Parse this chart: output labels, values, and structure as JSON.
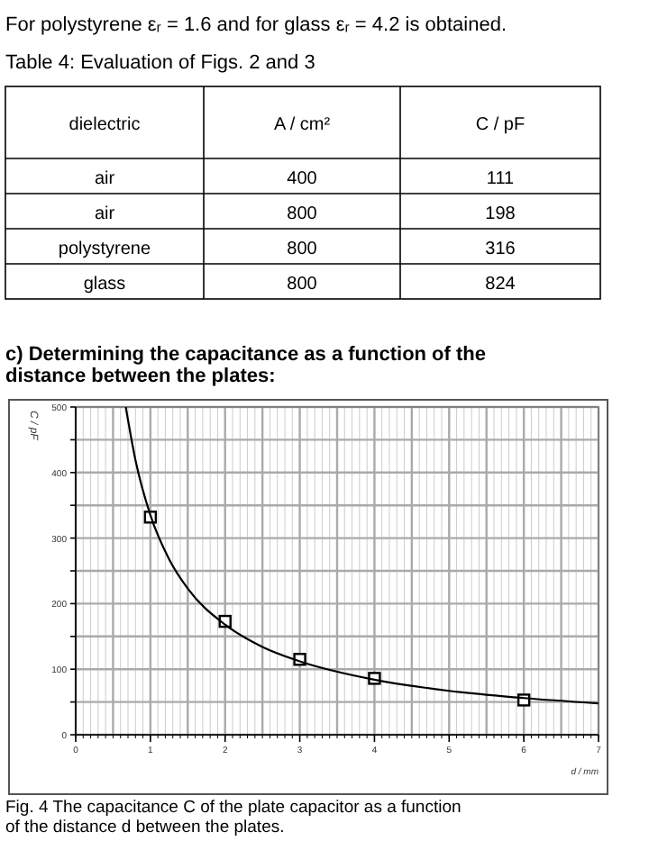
{
  "chart_data": [
    {
      "type": "other",
      "annotations": [
        "For polystyrene εᵣ = 1.6 and for glass εᵣ = 4.2 is obtained."
      ],
      "title": "Table 4: Evaluation of Figs. 2 and 3",
      "ylabel": "dielectric",
      "categories": [
        "air",
        "air",
        "polystyrene",
        "glass"
      ],
      "data_labels": true,
      "series": [
        {
          "name": "A / cm²",
          "values": [
            400,
            800,
            800,
            800
          ]
        },
        {
          "name": "C / pF",
          "values": [
            111,
            198,
            316,
            824
          ]
        }
      ]
    },
    {
      "type": "scatter",
      "title": "c) Determining the capacitance as a function of the distance between the plates:",
      "xlabel": "d / mm",
      "ylabel": "C / pF",
      "annotations": [
        "Fig. 4 The capacitance C of the plate capacitor as a function of the distance d between the plates."
      ],
      "xlim": [
        0,
        7
      ],
      "ylim": [
        0,
        500
      ],
      "xticks": [
        0,
        1,
        2,
        3,
        4,
        5,
        6,
        7
      ],
      "yticks": [
        0,
        {
          "value": 50,
          "label": null
        },
        100,
        {
          "value": 150,
          "label": null
        },
        200,
        {
          "value": 250,
          "label": null
        },
        300,
        {
          "value": 350,
          "label": null
        },
        400,
        {
          "value": 450,
          "label": null
        },
        500
      ],
      "grid": true,
      "series": [
        {
          "color": "#000000",
          "marker": "square",
          "x": [
            1,
            2,
            3,
            4,
            6
          ],
          "values": [
            332,
            173,
            115,
            86,
            53
          ]
        },
        {
          "type": "line",
          "color": "#000000",
          "marker": "none",
          "x": [
            0.67,
            0.8,
            1,
            1.25,
            1.5,
            2,
            2.5,
            3,
            4,
            5,
            6,
            7
          ],
          "values": [
            500,
            419,
            335,
            268,
            223,
            168,
            134,
            112,
            84,
            67,
            56,
            48
          ]
        }
      ]
    }
  ]
}
